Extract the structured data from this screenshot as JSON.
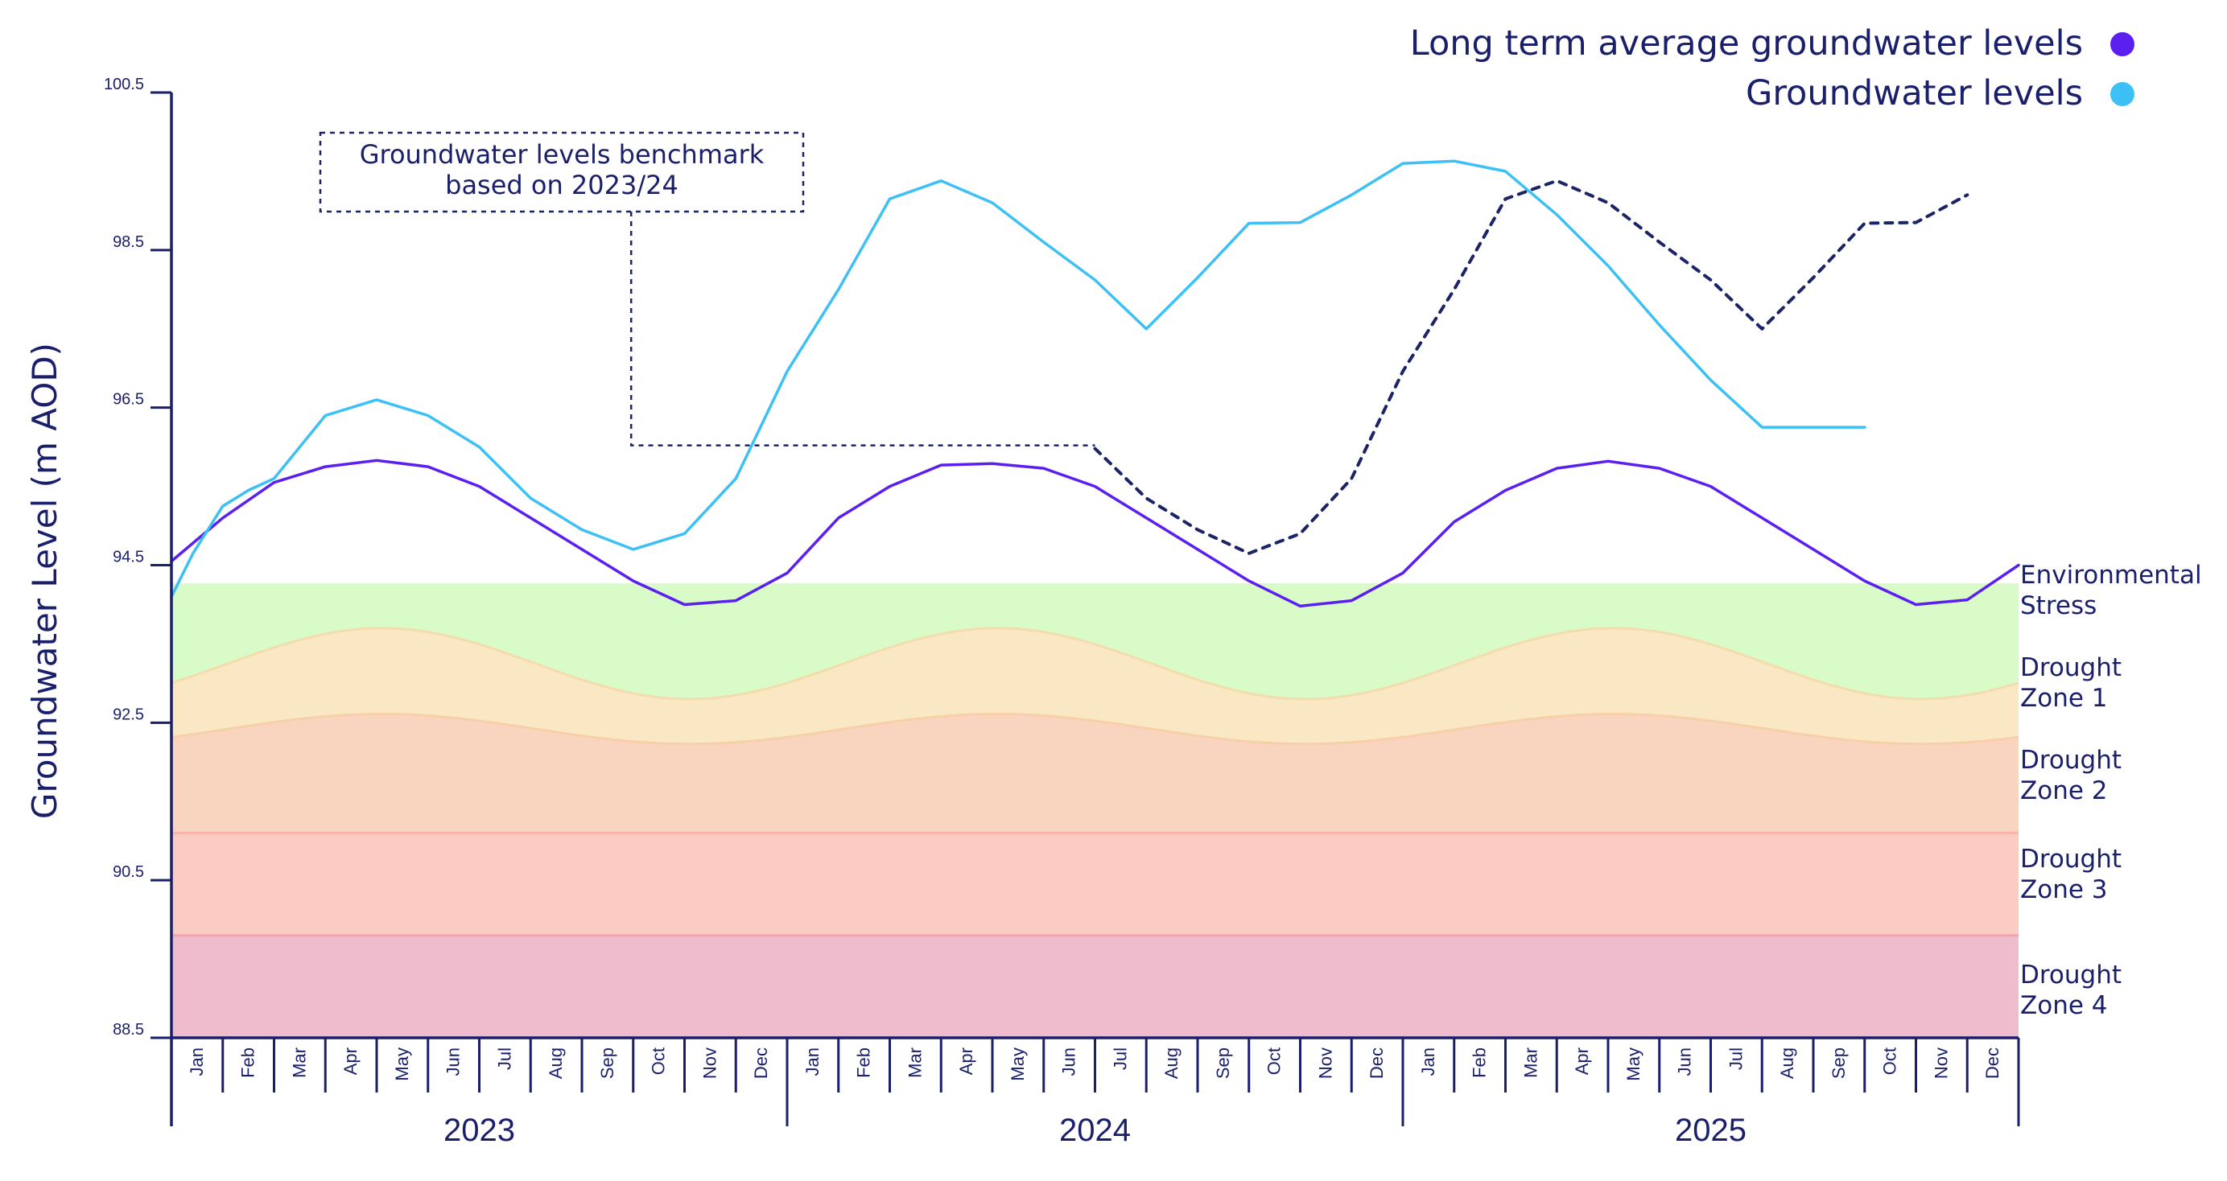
{
  "chart_data": {
    "type": "line",
    "ylabel": "Groundwater Level (m AOD)",
    "ylim": [
      88.5,
      100.5
    ],
    "yticks": [
      "100.5",
      "98.5",
      "96.5",
      "94.5",
      "92.5",
      "90.5",
      "88.5"
    ],
    "ytick_values": [
      100.5,
      98.5,
      96.5,
      94.5,
      92.5,
      90.5,
      88.5
    ],
    "months": [
      "Jan",
      "Feb",
      "Mar",
      "Apr",
      "May",
      "Jun",
      "Jul",
      "Aug",
      "Sep",
      "Oct",
      "Nov",
      "Dec"
    ],
    "years": [
      "2023",
      "2024",
      "2025"
    ],
    "legend_placement": "top-right",
    "grid": false,
    "colors": {
      "axis": "#1a1f6b",
      "long_term": "#5b1ff0",
      "groundwater": "#3dc0f5",
      "benchmark": "#1a2466",
      "env_stress": "#d8fbc7",
      "zone1": "#f9e8c3",
      "zone2": "#f9d5bf",
      "zone3": "#fccbc2",
      "zone4": "#efbccd",
      "zone3_edge": "#fab4ad",
      "zone4_edge": "#f2a3ad"
    },
    "series": [
      {
        "name": "Long term average groundwater levels",
        "key": "long_term",
        "x": [
          0,
          1,
          2,
          3,
          4,
          5,
          6,
          7,
          8,
          9,
          10,
          11,
          12,
          13,
          14,
          15,
          16,
          17,
          18,
          19,
          20,
          21,
          22,
          23,
          24,
          25,
          26,
          27,
          28,
          29,
          30,
          31,
          32,
          33,
          34,
          35,
          36
        ],
        "values": [
          94.55,
          95.1,
          95.55,
          95.75,
          95.83,
          95.75,
          95.5,
          95.1,
          94.7,
          94.3,
          94.0,
          94.05,
          94.4,
          95.1,
          95.5,
          95.77,
          95.79,
          95.73,
          95.5,
          95.1,
          94.7,
          94.3,
          93.98,
          94.05,
          94.4,
          95.05,
          95.45,
          95.73,
          95.82,
          95.73,
          95.5,
          95.1,
          94.7,
          94.3,
          94.0,
          94.06,
          94.5
        ]
      },
      {
        "name": "Groundwater levels",
        "key": "groundwater",
        "x": [
          0,
          0.42,
          1,
          1.5,
          2,
          3,
          4,
          5,
          6,
          7,
          8,
          9,
          10,
          11,
          12,
          13,
          14,
          15,
          16,
          17,
          18,
          19,
          20,
          21,
          22,
          23,
          24,
          25,
          26,
          27,
          28,
          29,
          30,
          31,
          32,
          33
        ],
        "values": [
          94.1,
          94.65,
          95.25,
          95.45,
          95.6,
          96.4,
          96.6,
          96.4,
          96.0,
          95.35,
          94.95,
          94.7,
          94.9,
          95.6,
          96.96,
          98.0,
          99.15,
          99.38,
          99.1,
          98.6,
          98.12,
          97.5,
          98.15,
          98.84,
          98.85,
          99.2,
          99.6,
          99.63,
          99.5,
          98.95,
          98.3,
          97.55,
          96.85,
          96.25,
          96.25,
          96.25
        ]
      },
      {
        "name": "Groundwater levels benchmark based on 2023/24",
        "key": "benchmark",
        "x": [
          18,
          19,
          20,
          21,
          22,
          23,
          24,
          25,
          26,
          27,
          28,
          29,
          30,
          31,
          32,
          33,
          34,
          35
        ],
        "values": [
          95.98,
          95.35,
          94.95,
          94.65,
          94.9,
          95.6,
          96.96,
          98.0,
          99.15,
          99.38,
          99.1,
          98.6,
          98.12,
          97.5,
          98.15,
          98.84,
          98.85,
          99.2
        ]
      }
    ],
    "zones": [
      {
        "name": "Environmental Stress",
        "label_lines": [
          "Environmental",
          "Stress"
        ],
        "key": "env_stress",
        "top": 94.27,
        "bottom_mean": 93.25,
        "bottom_amplitude": 0.45
      },
      {
        "name": "Drought Zone 1",
        "label_lines": [
          "Drought",
          "Zone 1"
        ],
        "key": "zone1",
        "top_mean": 93.25,
        "top_amplitude": 0.45,
        "bottom_mean": 92.42,
        "bottom_amplitude": 0.19
      },
      {
        "name": "Drought Zone 2",
        "label_lines": [
          "Drought",
          "Zone 2"
        ],
        "key": "zone2",
        "top_mean": 92.42,
        "top_amplitude": 0.19,
        "bottom": 91.1
      },
      {
        "name": "Drought Zone 3",
        "label_lines": [
          "Drought",
          "Zone 3"
        ],
        "key": "zone3",
        "top": 91.1,
        "bottom": 89.8
      },
      {
        "name": "Drought Zone 4",
        "label_lines": [
          "Drought",
          "Zone 4"
        ],
        "key": "zone4",
        "top": 89.8,
        "bottom": 88.5
      }
    ],
    "annotation": {
      "lines": [
        "Groundwater levels benchmark",
        "based on 2023/24"
      ],
      "leader_x": 8.96,
      "leader_y_top": 98.85,
      "leader_y_elbow": 96.02,
      "leader_x_end": 18.0
    },
    "legend": [
      {
        "label": "Long term average groundwater levels",
        "key": "long_term"
      },
      {
        "label": "Groundwater levels",
        "key": "groundwater"
      }
    ]
  }
}
